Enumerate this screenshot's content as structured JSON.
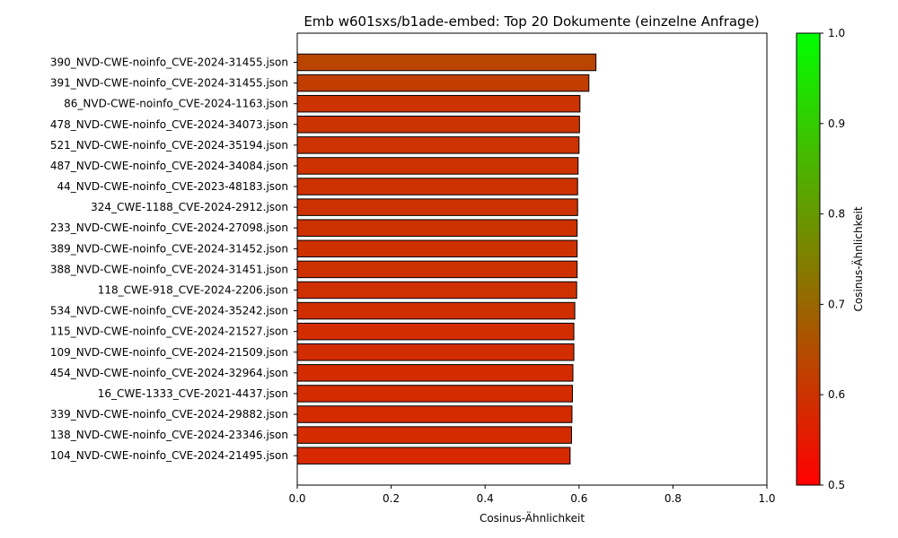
{
  "chart_data": {
    "type": "bar",
    "orientation": "horizontal",
    "title": "Emb w601sxs/b1ade-embed: Top 20 Dokumente (einzelne Anfrage)",
    "xlabel": "Cosinus-Ähnlichkeit",
    "ylabel": "",
    "xlim": [
      0.0,
      1.0
    ],
    "xticks": [
      "0.0",
      "0.2",
      "0.4",
      "0.6",
      "0.8",
      "1.0"
    ],
    "xtick_values": [
      0.0,
      0.2,
      0.4,
      0.6,
      0.8,
      1.0
    ],
    "grid": false,
    "categories": [
      "390_NVD-CWE-noinfo_CVE-2024-31455.json",
      "391_NVD-CWE-noinfo_CVE-2024-31455.json",
      "86_NVD-CWE-noinfo_CVE-2024-1163.json",
      "478_NVD-CWE-noinfo_CVE-2024-34073.json",
      "521_NVD-CWE-noinfo_CVE-2024-35194.json",
      "487_NVD-CWE-noinfo_CVE-2024-34084.json",
      "44_NVD-CWE-noinfo_CVE-2023-48183.json",
      "324_CWE-1188_CVE-2024-2912.json",
      "233_NVD-CWE-noinfo_CVE-2024-27098.json",
      "389_NVD-CWE-noinfo_CVE-2024-31452.json",
      "388_NVD-CWE-noinfo_CVE-2024-31451.json",
      "118_CWE-918_CVE-2024-2206.json",
      "534_NVD-CWE-noinfo_CVE-2024-35242.json",
      "115_NVD-CWE-noinfo_CVE-2024-21527.json",
      "109_NVD-CWE-noinfo_CVE-2024-21509.json",
      "454_NVD-CWE-noinfo_CVE-2024-32964.json",
      "16_CWE-1333_CVE-2021-4437.json",
      "339_NVD-CWE-noinfo_CVE-2024-29882.json",
      "138_NVD-CWE-noinfo_CVE-2024-23346.json",
      "104_NVD-CWE-noinfo_CVE-2024-21495.json"
    ],
    "values": [
      0.636,
      0.621,
      0.602,
      0.601,
      0.6,
      0.598,
      0.597,
      0.597,
      0.596,
      0.596,
      0.596,
      0.595,
      0.591,
      0.589,
      0.589,
      0.587,
      0.586,
      0.585,
      0.584,
      0.581
    ],
    "bar_edge_color": "#000000",
    "colorbar": {
      "label": "Cosinus-Ähnlichkeit",
      "range": [
        0.5,
        1.0
      ],
      "ticks": [
        "0.5",
        "0.6",
        "0.7",
        "0.8",
        "0.9",
        "1.0"
      ],
      "tick_values": [
        0.5,
        0.6,
        0.7,
        0.8,
        0.9,
        1.0
      ],
      "color_low": "#ff0000",
      "color_high": "#00ff00"
    }
  }
}
